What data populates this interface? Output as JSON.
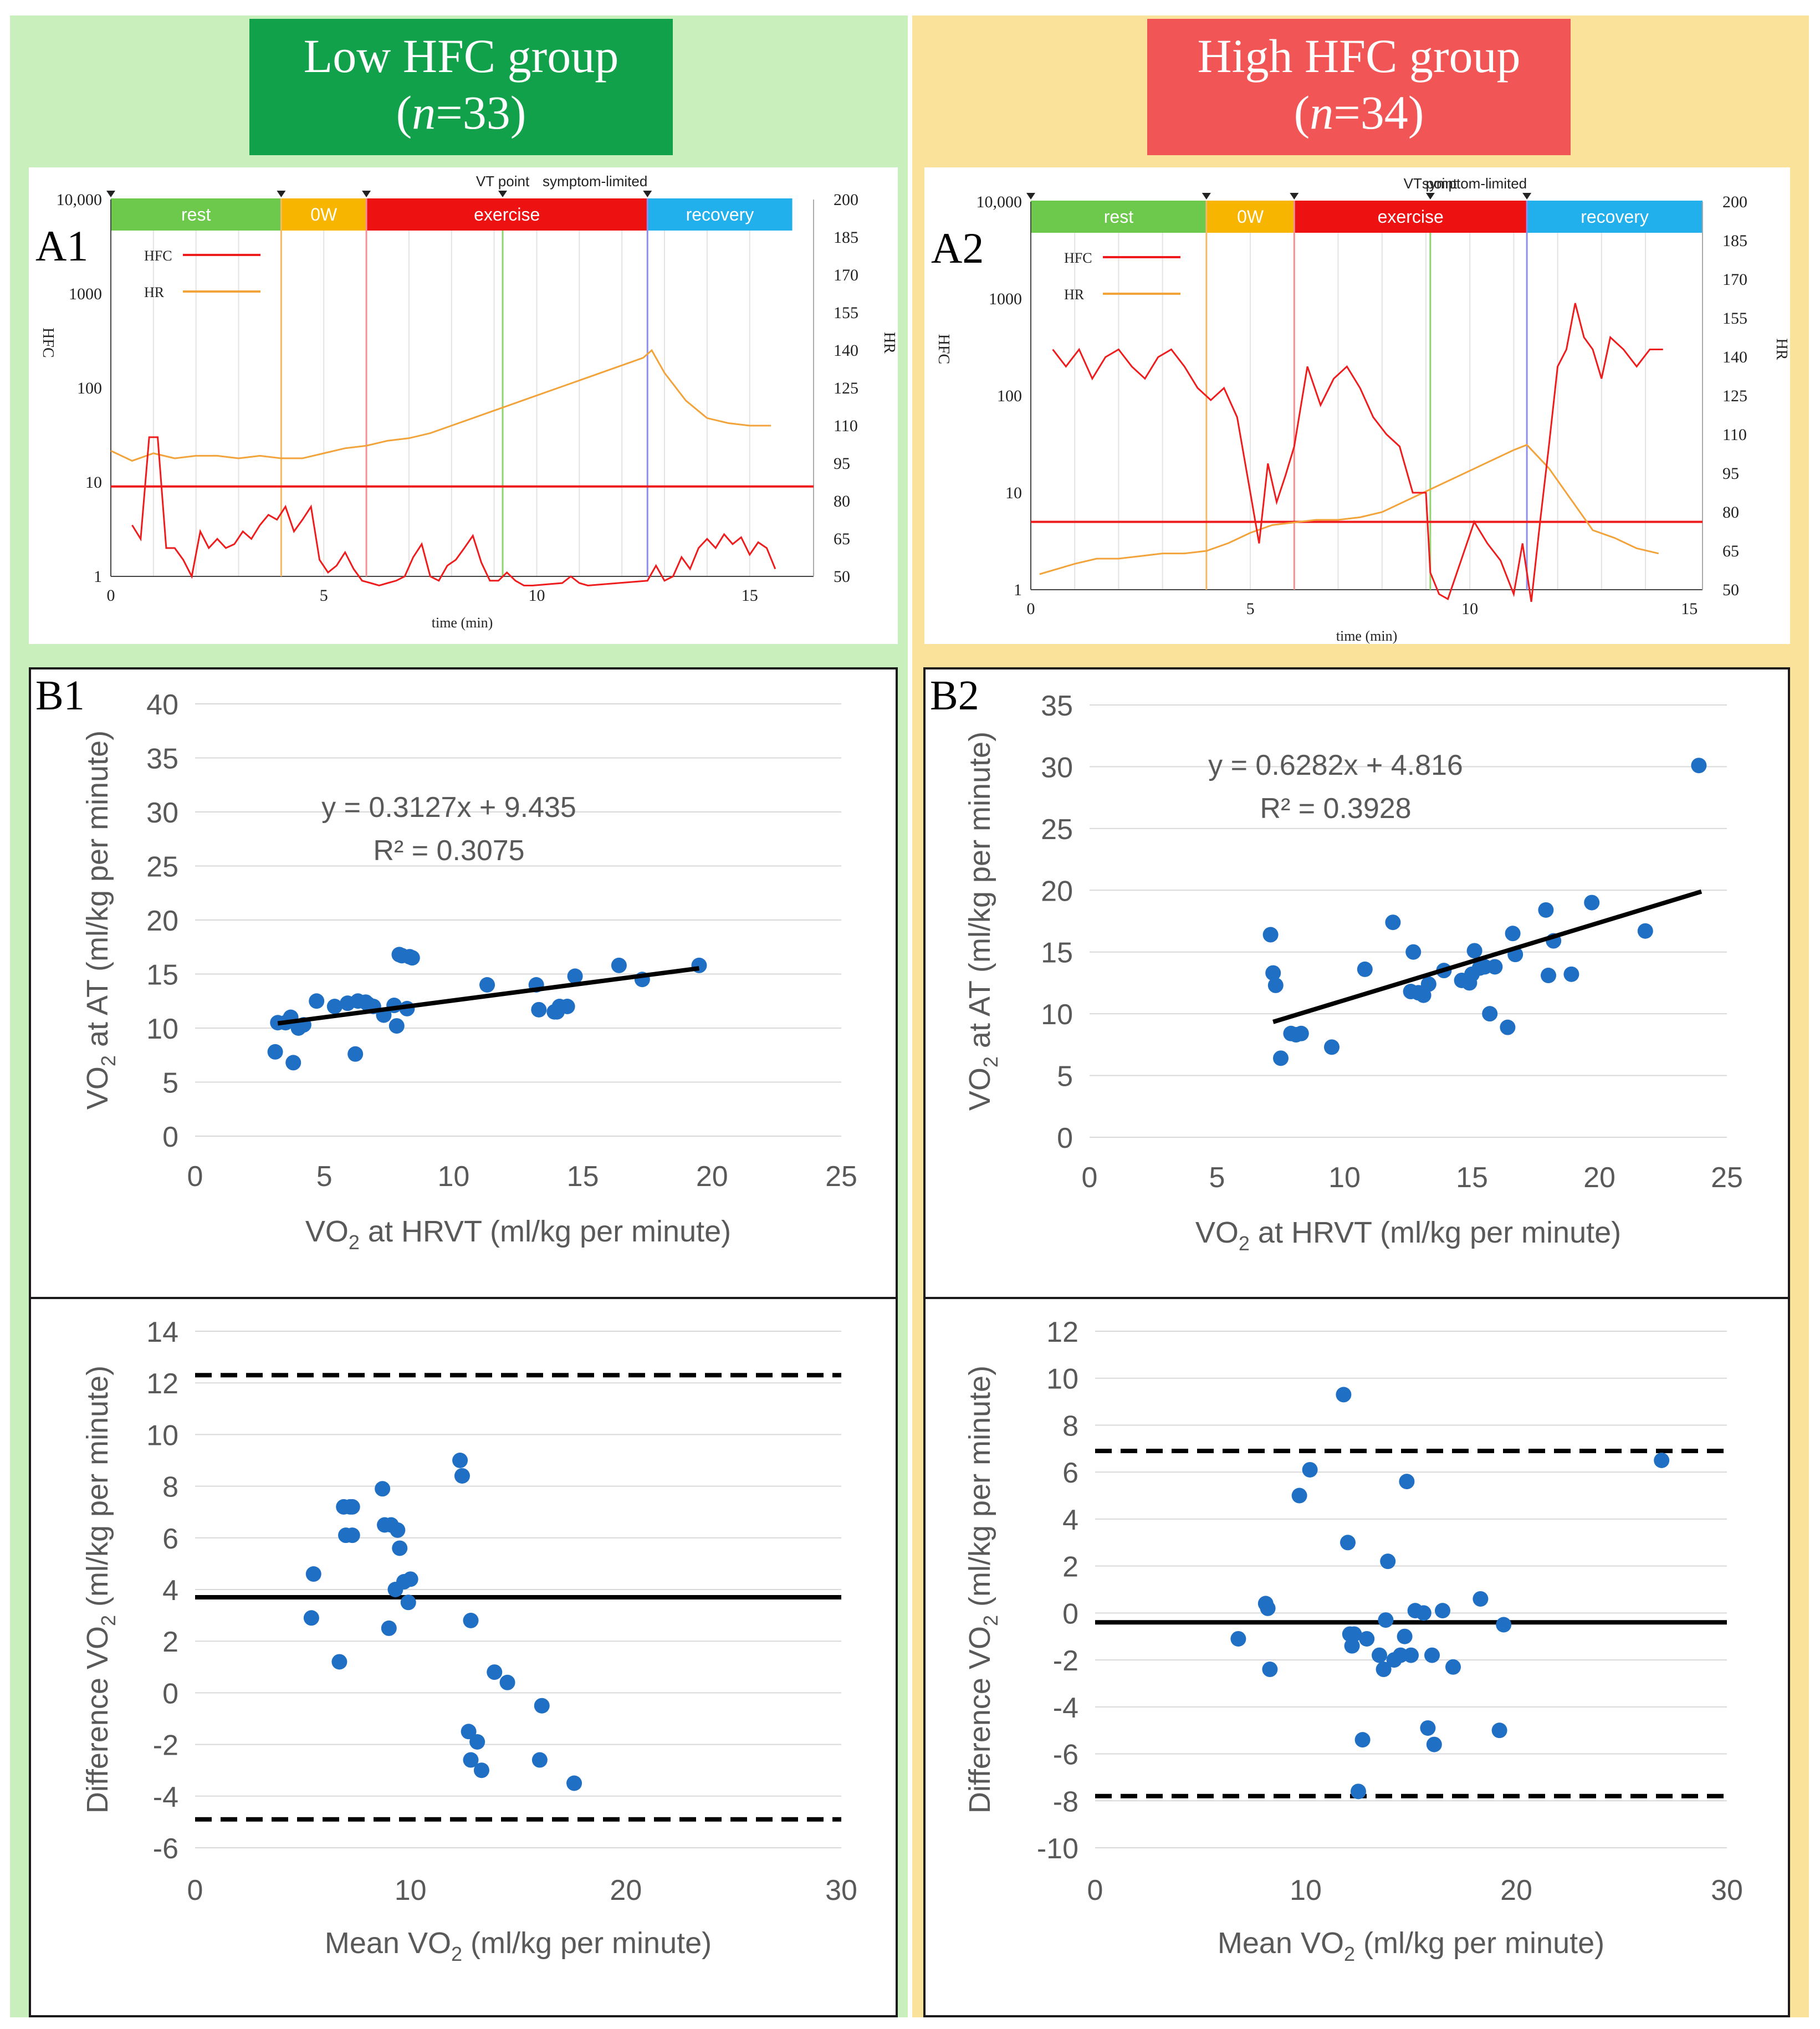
{
  "colors": {
    "left_bg": "#c9efbd",
    "right_bg": "#fae29a",
    "left_header": "#11a14a",
    "right_header": "#f25555",
    "point": "#1f6fc5",
    "hfc": "#ee1c1c",
    "hr": "#f2a33a",
    "rest": "#6cc94c",
    "ow": "#f7b500",
    "exercise": "#ee1111",
    "recovery": "#22b0ec"
  },
  "groups": [
    {
      "title": "Low HFC group",
      "n_prefix": "(",
      "n_var": "n",
      "n_value": "=33)"
    },
    {
      "title": "High HFC group",
      "n_prefix": "(",
      "n_var": "n",
      "n_value": "=34)"
    }
  ],
  "chart_data": [
    {
      "id": "A1",
      "type": "line",
      "panel_label": "A1",
      "phases": [
        "rest",
        "0W",
        "exercise",
        "recovery"
      ],
      "markers": [
        "VT point",
        "symptom-limited"
      ],
      "legend": [
        "HFC",
        "HR"
      ],
      "xlabel": "time (min)",
      "ylabel_left": "HFC",
      "ylabel_right": "HR",
      "x_ticks": [
        "0",
        "5",
        "10",
        "15"
      ],
      "y_left_ticks": [
        "10,000",
        "1000",
        "100",
        "10",
        "1"
      ],
      "y_right_ticks": [
        "200",
        "185",
        "170",
        "155",
        "140",
        "125",
        "110",
        "95",
        "80",
        "65",
        "50"
      ],
      "xlim": [
        0,
        16.5
      ],
      "phase_bounds": [
        0,
        4,
        6,
        12.6,
        16
      ],
      "vt_time": 9.2,
      "threshold_hfc": 9,
      "series": [
        {
          "name": "HFC",
          "x": [
            0.5,
            0.7,
            0.9,
            1.1,
            1.3,
            1.5,
            1.7,
            1.9,
            2.1,
            2.3,
            2.5,
            2.7,
            2.9,
            3.1,
            3.3,
            3.5,
            3.7,
            3.9,
            4.1,
            4.3,
            4.5,
            4.7,
            4.9,
            5.1,
            5.3,
            5.5,
            5.7,
            5.9,
            6.1,
            6.3,
            6.5,
            6.7,
            6.9,
            7.1,
            7.3,
            7.5,
            7.7,
            7.9,
            8.1,
            8.3,
            8.5,
            8.7,
            8.9,
            9.1,
            9.3,
            9.5,
            9.7,
            9.9,
            10.6,
            10.8,
            11.0,
            11.2,
            12.6,
            12.8,
            13.0,
            13.2,
            13.4,
            13.6,
            13.8,
            14.0,
            14.2,
            14.4,
            14.6,
            14.8,
            15.0,
            15.2,
            15.4,
            15.6
          ],
          "values": [
            3.5,
            2.5,
            30,
            30,
            2,
            2,
            1.5,
            1,
            3,
            2,
            2.5,
            2,
            2.2,
            3,
            2.5,
            3.5,
            4.5,
            4,
            5.5,
            3,
            4,
            5.5,
            1.5,
            1.1,
            1.3,
            1.8,
            1.2,
            0.9,
            0.85,
            0.8,
            0.85,
            0.9,
            1.0,
            1.6,
            2.2,
            1.0,
            0.9,
            1.3,
            1.5,
            2.0,
            2.7,
            1.4,
            0.9,
            0.9,
            1.1,
            0.9,
            0.8,
            0.8,
            0.85,
            1.0,
            0.85,
            0.8,
            0.9,
            1.3,
            0.9,
            1.0,
            1.6,
            1.2,
            2.0,
            2.5,
            2.0,
            2.8,
            2.2,
            2.6,
            1.7,
            2.3,
            2.0,
            1.2
          ]
        },
        {
          "name": "HR",
          "x": [
            0,
            0.5,
            1,
            1.5,
            2,
            2.5,
            3,
            3.5,
            4,
            4.5,
            5,
            5.5,
            6,
            6.5,
            7,
            7.5,
            8,
            8.5,
            9,
            9.5,
            10,
            10.5,
            11,
            11.5,
            12,
            12.5,
            12.7,
            13,
            13.5,
            14,
            14.5,
            15,
            15.5
          ],
          "values": [
            100,
            96,
            99,
            97,
            98,
            98,
            97,
            98,
            97,
            97,
            99,
            101,
            102,
            104,
            105,
            107,
            110,
            113,
            116,
            119,
            122,
            125,
            128,
            131,
            134,
            137,
            140,
            131,
            120,
            113,
            111,
            110,
            110
          ]
        }
      ]
    },
    {
      "id": "A2",
      "type": "line",
      "panel_label": "A2",
      "phases": [
        "rest",
        "0W",
        "exercise",
        "recovery"
      ],
      "markers": [
        "VT point",
        "symptom-limited"
      ],
      "legend": [
        "HFC",
        "HR"
      ],
      "xlabel": "time (min)",
      "ylabel_left": "HFC",
      "ylabel_right": "HR",
      "x_ticks": [
        "0",
        "5",
        "10",
        "15"
      ],
      "y_left_ticks": [
        "10,000",
        "1000",
        "100",
        "10",
        "1"
      ],
      "y_right_ticks": [
        "200",
        "185",
        "170",
        "155",
        "140",
        "125",
        "110",
        "95",
        "80",
        "65",
        "50"
      ],
      "xlim": [
        0,
        15.3
      ],
      "phase_bounds": [
        0,
        4,
        6,
        11.3,
        15.3
      ],
      "vt_time": 9.1,
      "threshold_hfc": 5,
      "series": [
        {
          "name": "HFC",
          "x": [
            0.5,
            0.8,
            1.1,
            1.4,
            1.7,
            2.0,
            2.3,
            2.6,
            2.9,
            3.2,
            3.5,
            3.8,
            4.1,
            4.4,
            4.7,
            5.0,
            5.2,
            5.4,
            5.6,
            5.8,
            6.0,
            6.3,
            6.6,
            6.9,
            7.2,
            7.5,
            7.8,
            8.1,
            8.4,
            8.7,
            9.0,
            9.1,
            9.3,
            9.5,
            9.8,
            10.1,
            10.4,
            10.7,
            11.0,
            11.2,
            11.4,
            11.6,
            11.8,
            12.0,
            12.2,
            12.4,
            12.6,
            12.8,
            13.0,
            13.2,
            13.5,
            13.8,
            14.1,
            14.4
          ],
          "values": [
            300,
            200,
            300,
            150,
            250,
            300,
            200,
            150,
            250,
            300,
            200,
            120,
            90,
            120,
            60,
            10,
            3,
            20,
            8,
            15,
            30,
            200,
            80,
            150,
            200,
            120,
            60,
            40,
            30,
            10,
            10,
            1.5,
            0.9,
            0.8,
            2,
            5,
            3,
            2,
            0.9,
            3,
            0.7,
            5,
            30,
            200,
            300,
            900,
            400,
            300,
            150,
            400,
            300,
            200,
            300,
            300
          ]
        },
        {
          "name": "HR",
          "x": [
            0.2,
            1,
            1.5,
            2,
            2.5,
            3,
            3.5,
            4,
            4.5,
            5,
            5.5,
            6,
            6.5,
            7,
            7.5,
            8,
            8.5,
            9,
            9.5,
            10,
            10.5,
            11,
            11.3,
            11.8,
            12.3,
            12.8,
            13.3,
            13.8,
            14.3
          ],
          "values": [
            56,
            60,
            62,
            62,
            63,
            64,
            64,
            65,
            68,
            72,
            75,
            76,
            77,
            77,
            78,
            80,
            84,
            88,
            92,
            96,
            100,
            104,
            106,
            97,
            85,
            73,
            70,
            66,
            64
          ]
        }
      ]
    },
    {
      "id": "B1",
      "type": "scatter",
      "panel_label": "B1",
      "xlabel_pre": "VO",
      "xlabel_sub": "2",
      "xlabel_post": " at HRVT (ml/kg per minute)",
      "ylabel_pre": "VO",
      "ylabel_sub": "2",
      "ylabel_post": " at AT (ml/kg per minute)",
      "xlim": [
        0,
        25
      ],
      "ylim": [
        0,
        40
      ],
      "x_ticks": [
        "0",
        "5",
        "10",
        "15",
        "20",
        "25"
      ],
      "y_ticks": [
        "0",
        "5",
        "10",
        "15",
        "20",
        "25",
        "30",
        "35",
        "40"
      ],
      "equation": "y = 0.3127x + 9.435",
      "r2": "R² = 0.3075",
      "trend": {
        "slope": 0.3127,
        "intercept": 9.435,
        "x_range": [
          3.2,
          19.5
        ]
      },
      "x": [
        3.1,
        3.2,
        3.5,
        3.7,
        3.8,
        4.0,
        4.2,
        4.7,
        5.4,
        5.9,
        6.3,
        6.6,
        6.7,
        6.9,
        7.3,
        7.7,
        7.8,
        7.9,
        8.0,
        8.2,
        8.3,
        8.4,
        6.2,
        11.3,
        13.2,
        13.3,
        13.9,
        14.0,
        14.1,
        14.4,
        14.7,
        16.4,
        17.3,
        19.5
      ],
      "y": [
        7.8,
        10.5,
        10.5,
        11.0,
        6.8,
        10.0,
        10.3,
        12.5,
        12.0,
        12.3,
        12.5,
        12.4,
        12.2,
        12.0,
        11.2,
        12.1,
        10.2,
        16.8,
        16.7,
        11.8,
        16.6,
        16.5,
        7.6,
        14.0,
        14.0,
        11.7,
        11.5,
        11.5,
        12.0,
        12.0,
        14.8,
        15.8,
        14.5,
        15.8
      ]
    },
    {
      "id": "B2",
      "type": "scatter",
      "panel_label": "B2",
      "xlabel_pre": "VO",
      "xlabel_sub": "2",
      "xlabel_post": " at HRVT (ml/kg per minute)",
      "ylabel_pre": "VO",
      "ylabel_sub": "2",
      "ylabel_post": " at AT (ml/kg per minute)",
      "xlim": [
        0,
        25
      ],
      "ylim": [
        0,
        35
      ],
      "x_ticks": [
        "0",
        "5",
        "10",
        "15",
        "20",
        "25"
      ],
      "y_ticks": [
        "0",
        "5",
        "10",
        "15",
        "20",
        "25",
        "30",
        "35"
      ],
      "equation": "y = 0.6282x + 4.816",
      "r2": "R² = 0.3928",
      "trend": {
        "slope": 0.6282,
        "intercept": 4.816,
        "x_range": [
          7.2,
          24
        ]
      },
      "x": [
        7.1,
        7.2,
        7.3,
        7.5,
        7.9,
        8.1,
        8.3,
        9.5,
        10.8,
        11.9,
        12.6,
        12.7,
        12.9,
        13.1,
        13.3,
        13.9,
        14.6,
        14.9,
        15.0,
        15.1,
        15.3,
        15.5,
        15.7,
        15.9,
        16.4,
        16.6,
        16.7,
        17.9,
        18.0,
        18.2,
        18.9,
        19.7,
        21.8,
        23.9
      ],
      "y": [
        16.4,
        13.3,
        12.3,
        6.4,
        8.4,
        8.3,
        8.4,
        7.3,
        13.6,
        17.4,
        11.8,
        15.0,
        11.7,
        11.5,
        12.4,
        13.5,
        12.7,
        12.5,
        13.2,
        15.1,
        13.7,
        13.8,
        10.0,
        13.8,
        8.9,
        16.5,
        14.8,
        18.4,
        13.1,
        15.9,
        13.2,
        19.0,
        16.7,
        30.1
      ]
    },
    {
      "id": "C1",
      "type": "scatter",
      "xlabel_pre": "Mean VO",
      "xlabel_sub": "2",
      "xlabel_post": " (ml/kg per minute)",
      "ylabel_pre": "Difference VO",
      "ylabel_sub": "2",
      "ylabel_post": " (ml/kg per minute)",
      "xlim": [
        0,
        30
      ],
      "ylim": [
        -6,
        14
      ],
      "x_ticks": [
        "0",
        "10",
        "20",
        "30"
      ],
      "y_ticks": [
        "-6",
        "-4",
        "-2",
        "0",
        "2",
        "4",
        "6",
        "8",
        "10",
        "12",
        "14"
      ],
      "mean_line": 3.7,
      "loa_upper": 12.3,
      "loa_lower": -4.9,
      "x": [
        5.4,
        5.5,
        6.7,
        6.9,
        7.0,
        7.2,
        7.3,
        7.3,
        8.7,
        8.8,
        9.0,
        9.1,
        9.3,
        9.4,
        9.5,
        9.7,
        9.9,
        10.0,
        12.3,
        12.4,
        12.7,
        12.8,
        12.8,
        13.1,
        13.3,
        13.9,
        14.5,
        16.0,
        16.1,
        17.6
      ],
      "y": [
        2.9,
        4.6,
        1.2,
        7.2,
        6.1,
        7.2,
        6.1,
        7.2,
        7.9,
        6.5,
        2.5,
        6.5,
        4.0,
        6.3,
        5.6,
        4.3,
        3.5,
        4.4,
        9.0,
        8.4,
        -1.5,
        -2.6,
        2.8,
        -1.9,
        -3.0,
        0.8,
        0.4,
        -2.6,
        -0.5,
        -3.5
      ]
    },
    {
      "id": "C2",
      "type": "scatter",
      "xlabel_pre": "Mean VO",
      "xlabel_sub": "2",
      "xlabel_post": " (ml/kg per minute)",
      "ylabel_pre": "Difference VO",
      "ylabel_sub": "2",
      "ylabel_post": " (ml/kg per minute)",
      "xlim": [
        0,
        30
      ],
      "ylim": [
        -10,
        12
      ],
      "x_ticks": [
        "0",
        "10",
        "20",
        "30"
      ],
      "y_ticks": [
        "-10",
        "-8",
        "-6",
        "-4",
        "-2",
        "0",
        "2",
        "4",
        "6",
        "8",
        "10",
        "12"
      ],
      "mean_line": -0.4,
      "loa_upper": 6.9,
      "loa_lower": -7.8,
      "x": [
        6.8,
        8.1,
        8.2,
        8.3,
        9.7,
        10.2,
        11.8,
        12.0,
        12.1,
        12.2,
        12.3,
        12.5,
        12.7,
        12.9,
        13.5,
        13.7,
        13.8,
        13.9,
        14.2,
        14.5,
        14.7,
        14.8,
        15.0,
        15.2,
        15.6,
        15.8,
        16.0,
        16.1,
        16.5,
        17.0,
        18.3,
        19.2,
        19.4,
        26.9
      ],
      "y": [
        -1.1,
        0.4,
        0.2,
        -2.4,
        5.0,
        6.1,
        9.3,
        3.0,
        -0.9,
        -1.4,
        -0.9,
        -7.6,
        -5.4,
        -1.1,
        -1.8,
        -2.4,
        -0.3,
        2.2,
        -2.0,
        -1.8,
        -1.0,
        5.6,
        -1.8,
        0.1,
        0.0,
        -4.9,
        -1.8,
        -5.6,
        0.1,
        -2.3,
        0.6,
        -5.0,
        -0.5,
        6.5
      ]
    }
  ]
}
